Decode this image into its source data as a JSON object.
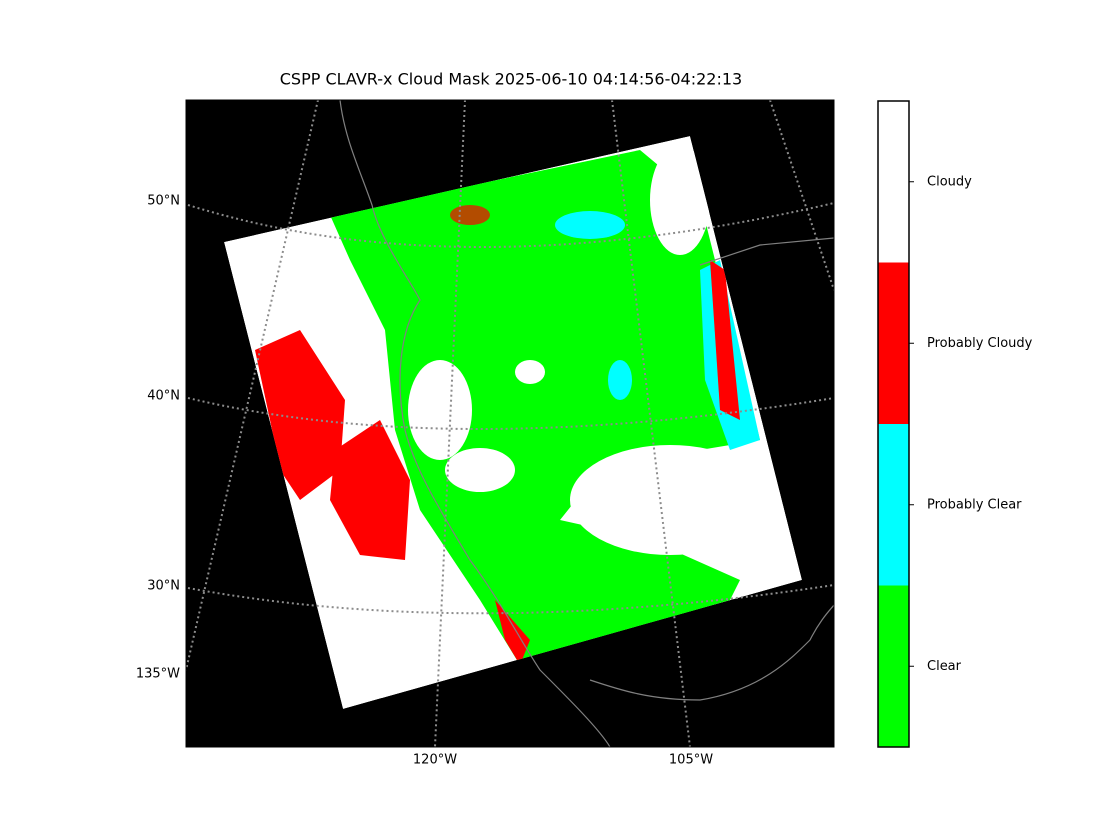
{
  "title": "CSPP CLAVR-x Cloud Mask 2025-06-10 04:14:56-04:22:13",
  "map": {
    "lat_labels": [
      "50°N",
      "40°N",
      "30°N",
      "135°W"
    ],
    "lon_labels": [
      "120°W",
      "105°W"
    ]
  },
  "colorbar": {
    "categories": [
      {
        "label": "Clear",
        "color": "#00ff00"
      },
      {
        "label": "Probably Clear",
        "color": "#00ffff"
      },
      {
        "label": "Probably Cloudy",
        "color": "#ff0000"
      },
      {
        "label": "Cloudy",
        "color": "#ffffff"
      }
    ]
  }
}
